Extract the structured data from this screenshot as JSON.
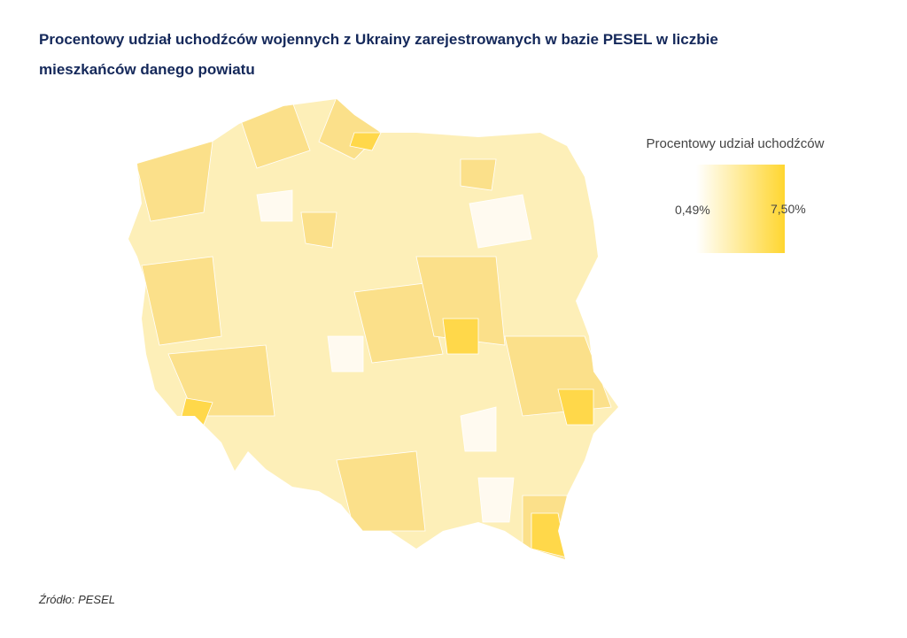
{
  "title": "Procentowy udział uchodźców wojennych z Ukrainy zarejestrowanych w bazie PESEL w liczbie mieszkańców danego powiatu",
  "legend": {
    "title": "Procentowy udział uchodźców",
    "min_label": "0,49%",
    "max_label": "7,50%"
  },
  "source": "Źródło: PESEL"
}
